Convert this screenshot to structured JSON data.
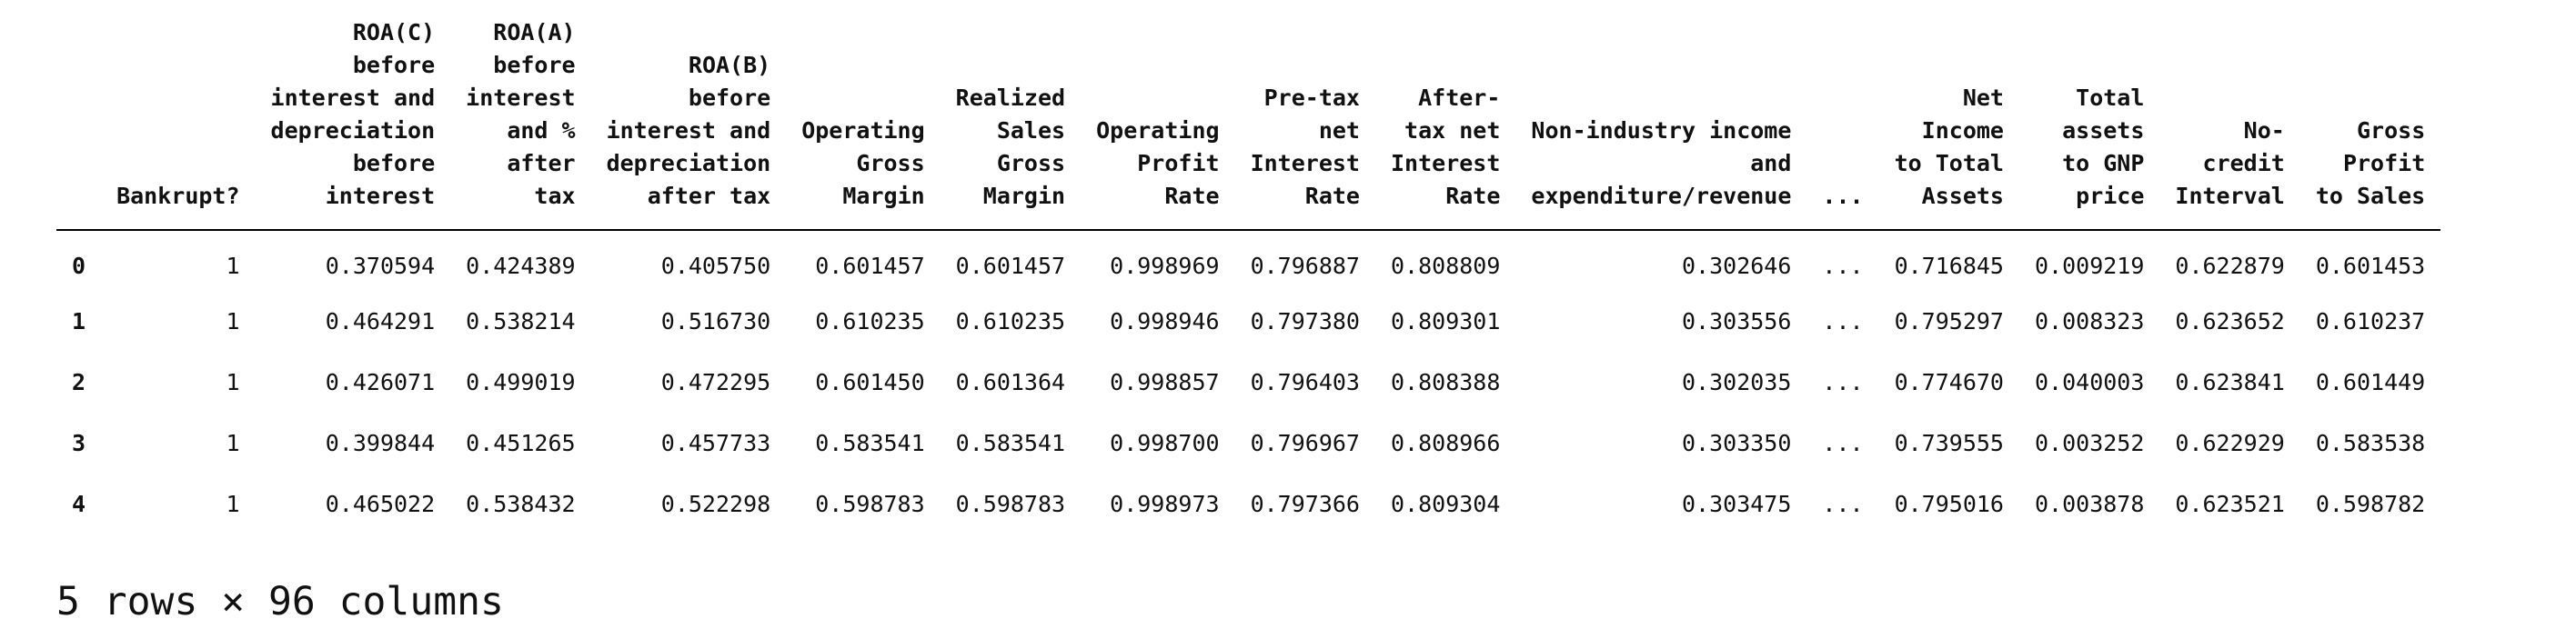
{
  "table": {
    "index_header": "",
    "columns": [
      {
        "lines": [
          "Bankrupt?"
        ]
      },
      {
        "lines": [
          "ROA(C)",
          "before",
          "interest and",
          "depreciation",
          "before",
          "interest"
        ]
      },
      {
        "lines": [
          "ROA(A)",
          "before",
          "interest",
          "and %",
          "after",
          "tax"
        ]
      },
      {
        "lines": [
          "ROA(B)",
          "before",
          "interest and",
          "depreciation",
          "after tax"
        ]
      },
      {
        "lines": [
          "Operating",
          "Gross",
          "Margin"
        ]
      },
      {
        "lines": [
          "Realized",
          "Sales",
          "Gross",
          "Margin"
        ]
      },
      {
        "lines": [
          "Operating",
          "Profit",
          "Rate"
        ]
      },
      {
        "lines": [
          "Pre-tax",
          "net",
          "Interest",
          "Rate"
        ]
      },
      {
        "lines": [
          "After-",
          "tax net",
          "Interest",
          "Rate"
        ]
      },
      {
        "lines": [
          "Non-industry income",
          "and",
          "expenditure/revenue"
        ]
      },
      {
        "lines": [
          "..."
        ]
      },
      {
        "lines": [
          "Net",
          "Income",
          "to Total",
          "Assets"
        ]
      },
      {
        "lines": [
          "Total",
          "assets",
          "to GNP",
          "price"
        ]
      },
      {
        "lines": [
          "No-",
          "credit",
          "Interval"
        ]
      },
      {
        "lines": [
          "Gross",
          "Profit",
          "to Sales"
        ]
      }
    ],
    "rows": [
      {
        "index": "0",
        "cells": [
          "1",
          "0.370594",
          "0.424389",
          "0.405750",
          "0.601457",
          "0.601457",
          "0.998969",
          "0.796887",
          "0.808809",
          "0.302646",
          "...",
          "0.716845",
          "0.009219",
          "0.622879",
          "0.601453"
        ]
      },
      {
        "index": "1",
        "cells": [
          "1",
          "0.464291",
          "0.538214",
          "0.516730",
          "0.610235",
          "0.610235",
          "0.998946",
          "0.797380",
          "0.809301",
          "0.303556",
          "...",
          "0.795297",
          "0.008323",
          "0.623652",
          "0.610237"
        ]
      },
      {
        "index": "2",
        "cells": [
          "1",
          "0.426071",
          "0.499019",
          "0.472295",
          "0.601450",
          "0.601364",
          "0.998857",
          "0.796403",
          "0.808388",
          "0.302035",
          "...",
          "0.774670",
          "0.040003",
          "0.623841",
          "0.601449"
        ]
      },
      {
        "index": "3",
        "cells": [
          "1",
          "0.399844",
          "0.451265",
          "0.457733",
          "0.583541",
          "0.583541",
          "0.998700",
          "0.796967",
          "0.808966",
          "0.303350",
          "...",
          "0.739555",
          "0.003252",
          "0.622929",
          "0.583538"
        ]
      },
      {
        "index": "4",
        "cells": [
          "1",
          "0.465022",
          "0.538432",
          "0.522298",
          "0.598783",
          "0.598783",
          "0.998973",
          "0.797366",
          "0.809304",
          "0.303475",
          "...",
          "0.795016",
          "0.003878",
          "0.623521",
          "0.598782"
        ]
      }
    ]
  },
  "footer": {
    "shape_text": "5 rows × 96 columns"
  }
}
